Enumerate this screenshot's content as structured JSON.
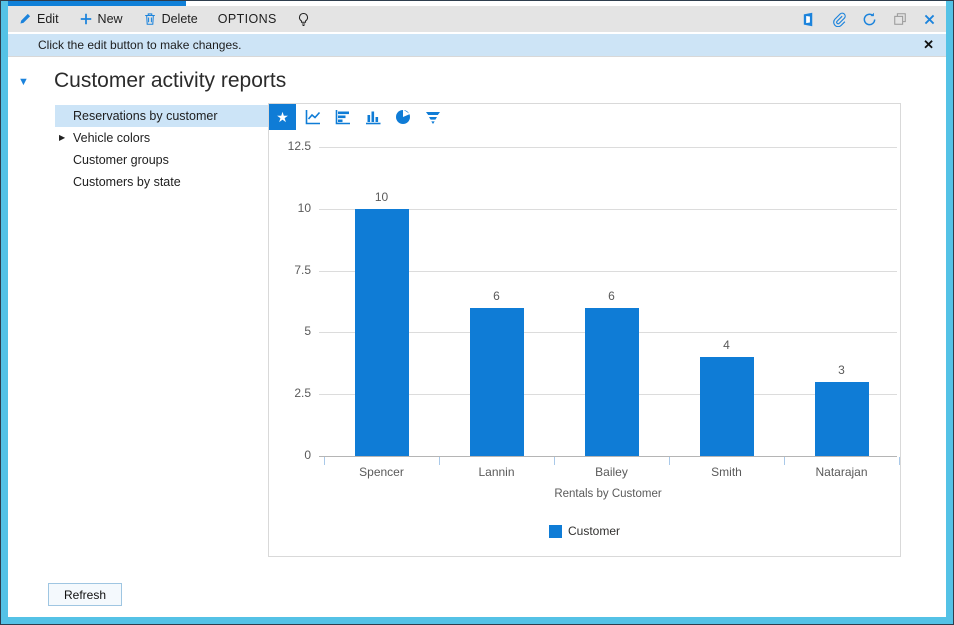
{
  "toolbar": {
    "edit_label": "Edit",
    "new_label": "New",
    "delete_label": "Delete",
    "options_label": "OPTIONS"
  },
  "icons": {
    "star": "★",
    "filter": "▼",
    "expander": "▶",
    "notif_close": "✕"
  },
  "notification": {
    "message": "Click the edit button to make changes."
  },
  "page": {
    "title": "Customer activity reports"
  },
  "sidebar": {
    "items": [
      {
        "label": "Reservations by customer",
        "selected": true
      },
      {
        "label": "Vehicle colors",
        "expandable": true
      },
      {
        "label": "Customer groups"
      },
      {
        "label": "Customers by state"
      }
    ]
  },
  "chart_data": {
    "type": "bar",
    "categories": [
      "Spencer",
      "Lannin",
      "Bailey",
      "Smith",
      "Natarajan"
    ],
    "values": [
      10,
      6,
      6,
      4,
      3
    ],
    "series": [
      {
        "name": "Customer",
        "values": [
          10,
          6,
          6,
          4,
          3
        ]
      }
    ],
    "title": "",
    "xlabel": "Rentals by Customer",
    "ylabel": "",
    "ylim": [
      0,
      12.5
    ],
    "yticks": [
      0,
      2.5,
      5,
      7.5,
      10,
      12.5
    ],
    "grid": "horizontal",
    "legend": [
      {
        "label": "Customer",
        "color": "#0f7cd6"
      }
    ],
    "bar_color": "#0f7cd6",
    "legend_position": "bottom"
  },
  "footer": {
    "refresh_label": "Refresh"
  },
  "colors": {
    "accent_blue": "#0f7cd6",
    "frame_cyan": "#54c2e6",
    "notification_bg": "#cde4f6",
    "selected_bg": "#cce4f7",
    "toolbar_bg": "#e4e4e4"
  }
}
